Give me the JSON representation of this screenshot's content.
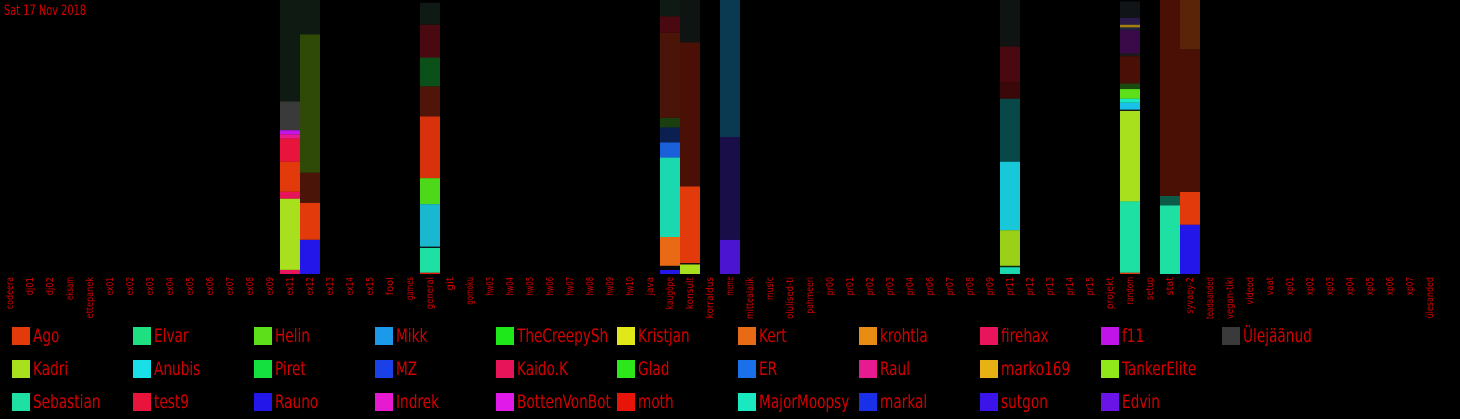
{
  "date_label": "Sat 17 Nov 2018",
  "chart_data": {
    "type": "bar",
    "stacked": true,
    "categories": [
      "codeera",
      "dj01",
      "dj02",
      "eksam",
      "ettepanek",
      "ex01",
      "ex02",
      "ex03",
      "ex04",
      "ex05",
      "ex06",
      "ex07",
      "ex08",
      "ex09",
      "ex11",
      "ex12",
      "ex13",
      "ex14",
      "ex15",
      "fool",
      "games",
      "general",
      "git",
      "gomoku",
      "hw03",
      "hw04",
      "hw05",
      "hw06",
      "hw07",
      "hw08",
      "hw09",
      "hw10",
      "java",
      "kaugõpe",
      "konsult",
      "korraldus",
      "meme",
      "mittealalik",
      "music",
      "olulised-ti",
      "pahmeeri",
      "pr00",
      "pr01",
      "pr02",
      "pr03",
      "pr04",
      "pr06",
      "pr07",
      "pr08",
      "pr09",
      "pr11",
      "pr12",
      "pr13",
      "pr14",
      "pr15",
      "projekt",
      "random",
      "setup",
      "stat",
      "syvaoy-2",
      "teadaanded",
      "vegan-tiki",
      "videod",
      "vaat",
      "xp01",
      "xp02",
      "xp03",
      "xp04",
      "xp05",
      "xp06",
      "xp07",
      "ülesanded"
    ],
    "legend": [
      {
        "name": "Ago",
        "color": "#e33a0c"
      },
      {
        "name": "Kadri",
        "color": "#a8e01e"
      },
      {
        "name": "Sebastian",
        "color": "#1ee0a2"
      },
      {
        "name": "Elvar",
        "color": "#1ee080"
      },
      {
        "name": "Anubis",
        "color": "#19dfe8"
      },
      {
        "name": "test9",
        "color": "#e8143c"
      },
      {
        "name": "Helin",
        "color": "#5de01a"
      },
      {
        "name": "Piret",
        "color": "#14e040"
      },
      {
        "name": "Rauno",
        "color": "#2216e8"
      },
      {
        "name": "Mikk",
        "color": "#1a9ae8"
      },
      {
        "name": "MZ",
        "color": "#1a40e8"
      },
      {
        "name": "Indrek",
        "color": "#e81ad0"
      },
      {
        "name": "TheCreepySh",
        "color": "#1ee81a"
      },
      {
        "name": "Kaido.K",
        "color": "#e8145a"
      },
      {
        "name": "BottenVonBot",
        "color": "#e01ae8"
      },
      {
        "name": "Kristjan",
        "color": "#e0e81a"
      },
      {
        "name": "Glad",
        "color": "#2ce81a"
      },
      {
        "name": "moth",
        "color": "#e8140a"
      },
      {
        "name": "Kert",
        "color": "#e86a14"
      },
      {
        "name": "ER",
        "color": "#1a70e8"
      },
      {
        "name": "MajorMoopsy",
        "color": "#1ae8c0"
      },
      {
        "name": "krohtla",
        "color": "#e88c14"
      },
      {
        "name": "Raul",
        "color": "#e81a90"
      },
      {
        "name": "markal",
        "color": "#1a30e8"
      },
      {
        "name": "firehax",
        "color": "#e8145c"
      },
      {
        "name": "marko169",
        "color": "#e8b214"
      },
      {
        "name": "sutgon",
        "color": "#3a14e8"
      },
      {
        "name": "f11",
        "color": "#c014e8"
      },
      {
        "name": "TankerElite",
        "color": "#90e81a"
      },
      {
        "name": "Edvin",
        "color": "#6a14e8"
      },
      {
        "name": "Ülejäänud",
        "color": "#3a3a3a"
      }
    ],
    "max_value": 100,
    "stacks": [
      {
        "category": "ex11",
        "segments": [
          {
            "value": 1.5,
            "color": "#e8145c"
          },
          {
            "value": 26,
            "color": "#a8e01e"
          },
          {
            "value": 2.5,
            "color": "#e8145a"
          },
          {
            "value": 11,
            "color": "#e33a0c"
          },
          {
            "value": 8.5,
            "color": "#e8143c"
          },
          {
            "value": 1.5,
            "color": "#e81a90"
          },
          {
            "value": 1.5,
            "color": "#c014e8"
          },
          {
            "value": 10.5,
            "color": "#3a3a3a"
          },
          {
            "value": 37,
            "color": "#0f1a12"
          }
        ]
      },
      {
        "category": "ex12",
        "segments": [
          {
            "value": 12.5,
            "color": "#2216e8"
          },
          {
            "value": 13.5,
            "color": "#e33a0c"
          },
          {
            "value": 11,
            "color": "#4a1408"
          },
          {
            "value": 50.5,
            "color": "#2e4a06"
          },
          {
            "value": 12.5,
            "color": "#0f1a12"
          }
        ]
      },
      {
        "category": "general",
        "segments": [
          {
            "value": 0.5,
            "color": "#e8140a"
          },
          {
            "value": 9,
            "color": "#1ee0a2"
          },
          {
            "value": 0.5,
            "color": "#0a1a1a"
          },
          {
            "value": 15.5,
            "color": "#19b8d0"
          },
          {
            "value": 9.5,
            "color": "#4ed81a"
          },
          {
            "value": 22.5,
            "color": "#d8320c"
          },
          {
            "value": 11,
            "color": "#501408"
          },
          {
            "value": 10.5,
            "color": "#0b5018"
          },
          {
            "value": 12,
            "color": "#4a0810"
          },
          {
            "value": 8,
            "color": "#0f1a14"
          }
        ]
      },
      {
        "category": "kaugõpe",
        "segments": [
          {
            "value": 1.5,
            "color": "#2216e8"
          },
          {
            "value": 1.5,
            "color": "#0a0a0a"
          },
          {
            "value": 10.5,
            "color": "#e86a14"
          },
          {
            "value": 29,
            "color": "#1ad8b0"
          },
          {
            "value": 5.5,
            "color": "#1a60d8"
          },
          {
            "value": 5.5,
            "color": "#0a2050"
          },
          {
            "value": 3.5,
            "color": "#1a4010"
          },
          {
            "value": 31,
            "color": "#4a1408"
          },
          {
            "value": 6,
            "color": "#4a0810"
          },
          {
            "value": 6,
            "color": "#101a14"
          }
        ]
      },
      {
        "category": "konsult",
        "segments": [
          {
            "value": 3.5,
            "color": "#a8e01e"
          },
          {
            "value": 0.5,
            "color": "#101010"
          },
          {
            "value": 28,
            "color": "#e33a0c"
          },
          {
            "value": 52.5,
            "color": "#4a1006"
          },
          {
            "value": 15.5,
            "color": "#0f1412"
          }
        ]
      },
      {
        "category": "meme",
        "segments": [
          {
            "value": 12.5,
            "color": "#4a14d0"
          },
          {
            "value": 37.5,
            "color": "#1a0e48"
          },
          {
            "value": 50,
            "color": "#0a3a52"
          }
        ]
      },
      {
        "category": "pr11",
        "segments": [
          {
            "value": 2.5,
            "color": "#1ad8b0"
          },
          {
            "value": 0.5,
            "color": "#0a2a1a"
          },
          {
            "value": 13,
            "color": "#9ad018"
          },
          {
            "value": 25,
            "color": "#19c8d8"
          },
          {
            "value": 23,
            "color": "#084848"
          },
          {
            "value": 6,
            "color": "#3a0808"
          },
          {
            "value": 13,
            "color": "#4a0810"
          },
          {
            "value": 17,
            "color": "#0f1412"
          }
        ]
      },
      {
        "category": "random",
        "segments": [
          {
            "value": 0.5,
            "color": "#e33a0c"
          },
          {
            "value": 26,
            "color": "#1ee0a2"
          },
          {
            "value": 33,
            "color": "#a8e01e"
          },
          {
            "value": 0.5,
            "color": "#1a1a1a"
          },
          {
            "value": 2.5,
            "color": "#19c0e8"
          },
          {
            "value": 1.5,
            "color": "#1ae8c0"
          },
          {
            "value": 3.5,
            "color": "#5de01a"
          },
          {
            "value": 2,
            "color": "#1a4a10"
          },
          {
            "value": 10,
            "color": "#4a1008"
          },
          {
            "value": 1,
            "color": "#1a1a1a"
          },
          {
            "value": 8.5,
            "color": "#3a0a48"
          },
          {
            "value": 1,
            "color": "#202040"
          },
          {
            "value": 1,
            "color": "#a08010"
          },
          {
            "value": 2.5,
            "color": "#2a1a4a"
          },
          {
            "value": 6,
            "color": "#101416"
          }
        ]
      },
      {
        "category": "stat",
        "segments": [
          {
            "value": 25,
            "color": "#1ee0a2"
          },
          {
            "value": 3.5,
            "color": "#0c5a48"
          },
          {
            "value": 71.5,
            "color": "#4a1006"
          }
        ]
      },
      {
        "category": "syvaoy-2",
        "segments": [
          {
            "value": 18,
            "color": "#2216e8"
          },
          {
            "value": 12,
            "color": "#e33a0c"
          },
          {
            "value": 52,
            "color": "#4a1006"
          },
          {
            "value": 18,
            "color": "#5a2408"
          }
        ]
      }
    ]
  }
}
